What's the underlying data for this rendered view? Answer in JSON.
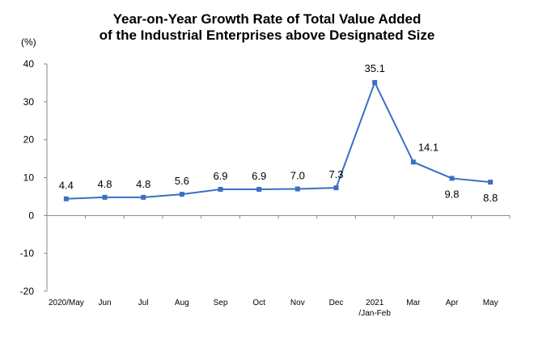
{
  "chart_data": {
    "type": "line",
    "title": "Year-on-Year Growth Rate of Total Value Added",
    "subtitle": "of the Industrial Enterprises above Designated Size",
    "ylabel": "(%)",
    "xlabel": "",
    "ylim": [
      -20,
      40
    ],
    "yticks": [
      "40",
      "30",
      "20",
      "10",
      "0",
      "-10",
      "-20"
    ],
    "categories": [
      "2020/May",
      "Jun",
      "Jul",
      "Aug",
      "Sep",
      "Oct",
      "Nov",
      "Dec",
      "2021",
      "Mar",
      "Apr",
      "May"
    ],
    "category_sublabels": [
      "",
      "",
      "",
      "",
      "",
      "",
      "",
      "",
      "/Jan-Feb",
      "",
      "",
      ""
    ],
    "series": [
      {
        "values": [
          4.4,
          4.8,
          4.8,
          5.6,
          6.9,
          6.9,
          7.0,
          7.3,
          35.1,
          14.1,
          9.8,
          8.8
        ],
        "labels": [
          "4.4",
          "4.8",
          "4.8",
          "5.6",
          "6.9",
          "6.9",
          "7.0",
          "7.3",
          "35.1",
          "14.1",
          "9.8",
          "8.8"
        ],
        "label_positions": [
          "above",
          "above",
          "above",
          "above",
          "above",
          "above",
          "above",
          "above",
          "above",
          "above-right",
          "below",
          "below"
        ],
        "color": "#3a6fc4"
      }
    ],
    "grid": false,
    "legend": "none"
  }
}
